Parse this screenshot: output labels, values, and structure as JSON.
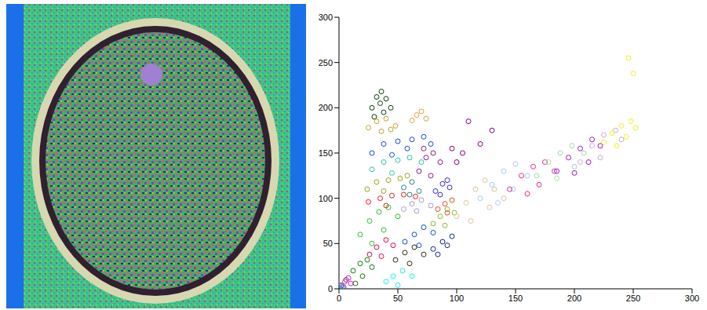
{
  "chart_data": {
    "type": "scatter",
    "xlim": [
      0,
      300
    ],
    "ylim": [
      0,
      300
    ],
    "xticks": [
      0,
      50,
      100,
      150,
      200,
      250,
      300
    ],
    "yticks": [
      0,
      50,
      100,
      150,
      200,
      250,
      300
    ],
    "grid": false,
    "marker": "circle",
    "series": [
      {
        "color": "#0a3a0a",
        "x": [
          28,
          32,
          36,
          40,
          44,
          30,
          38,
          35
        ],
        "y": [
          200,
          212,
          218,
          210,
          200,
          190,
          195,
          205
        ]
      },
      {
        "color": "#c8a030",
        "x": [
          25,
          32,
          40,
          48,
          36,
          44
        ],
        "y": [
          178,
          185,
          188,
          180,
          174,
          176
        ]
      },
      {
        "color": "#e0a040",
        "x": [
          62,
          66,
          70,
          74
        ],
        "y": [
          186,
          192,
          196,
          188
        ]
      },
      {
        "color": "#1848d8",
        "x": [
          28,
          38,
          50,
          62,
          72,
          45,
          58,
          78
        ],
        "y": [
          150,
          160,
          163,
          165,
          168,
          148,
          155,
          160
        ]
      },
      {
        "color": "#20c8a8",
        "x": [
          28,
          38,
          50,
          60,
          70,
          45
        ],
        "y": [
          132,
          140,
          142,
          145,
          140,
          128
        ]
      },
      {
        "color": "#8c1c8c",
        "x": [
          68,
          74,
          80,
          86,
          78,
          72
        ],
        "y": [
          130,
          145,
          150,
          140,
          125,
          155
        ]
      },
      {
        "color": "#a0a020",
        "x": [
          24,
          32,
          42,
          52,
          38,
          58
        ],
        "y": [
          110,
          118,
          120,
          122,
          108,
          125
        ]
      },
      {
        "color": "#208c90",
        "x": [
          55,
          62,
          68,
          60
        ],
        "y": [
          112,
          118,
          108,
          104
        ]
      },
      {
        "color": "#3c28d0",
        "x": [
          82,
          88,
          94,
          86,
          92
        ],
        "y": [
          108,
          116,
          112,
          104,
          120
        ]
      },
      {
        "color": "#f01818",
        "x": [
          25,
          35,
          45,
          55,
          65,
          40
        ],
        "y": [
          96,
          100,
          103,
          104,
          102,
          92
        ]
      },
      {
        "color": "#a898c8",
        "x": [
          55,
          62,
          70,
          78,
          66
        ],
        "y": [
          88,
          94,
          98,
          92,
          86
        ]
      },
      {
        "color": "#e05020",
        "x": [
          84,
          90,
          96,
          92
        ],
        "y": [
          88,
          94,
          98,
          84
        ]
      },
      {
        "color": "#30c030",
        "x": [
          18,
          26,
          34,
          42,
          50,
          28,
          38
        ],
        "y": [
          60,
          75,
          85,
          90,
          80,
          50,
          65
        ]
      },
      {
        "color": "#108010",
        "x": [
          6,
          12,
          18,
          24,
          28,
          14,
          20
        ],
        "y": [
          10,
          20,
          28,
          32,
          24,
          6,
          14
        ]
      },
      {
        "color": "#d01048",
        "x": [
          26,
          32,
          40,
          46,
          36
        ],
        "y": [
          38,
          46,
          54,
          48,
          36
        ]
      },
      {
        "color": "#1050d0",
        "x": [
          56,
          64,
          72,
          80,
          68
        ],
        "y": [
          52,
          60,
          68,
          62,
          48
        ]
      },
      {
        "color": "#303018",
        "x": [
          48,
          56,
          64,
          72,
          60
        ],
        "y": [
          32,
          40,
          46,
          38,
          28
        ]
      },
      {
        "color": "#142890",
        "x": [
          80,
          88,
          96,
          92,
          84
        ],
        "y": [
          44,
          52,
          58,
          48,
          38
        ]
      },
      {
        "color": "#18f0f0",
        "x": [
          40,
          46,
          54,
          62,
          50
        ],
        "y": [
          8,
          14,
          20,
          14,
          4
        ]
      },
      {
        "color": "#f010f0",
        "x": [
          2,
          5,
          8,
          10,
          4
        ],
        "y": [
          4,
          8,
          12,
          6,
          2
        ]
      },
      {
        "color": "#109898",
        "x": [
          1,
          2,
          3
        ],
        "y": [
          1,
          3,
          2
        ]
      },
      {
        "color": "#98b830",
        "x": [
          80,
          86,
          92,
          98,
          90
        ],
        "y": [
          72,
          80,
          88,
          84,
          70
        ]
      },
      {
        "color": "#d8c898",
        "x": [
          100,
          108,
          116,
          124,
          132,
          140,
          112,
          128
        ],
        "y": [
          80,
          95,
          110,
          120,
          110,
          100,
          75,
          90
        ]
      },
      {
        "color": "#a8ccf0",
        "x": [
          120,
          130,
          140,
          150,
          160,
          135,
          148
        ],
        "y": [
          100,
          115,
          130,
          138,
          125,
          95,
          110
        ]
      },
      {
        "color": "#e02890",
        "x": [
          145,
          155,
          165,
          175,
          183,
          160,
          170
        ],
        "y": [
          110,
          125,
          135,
          140,
          130,
          105,
          115
        ]
      },
      {
        "color": "#a8d8a8",
        "x": [
          168,
          178,
          188,
          198,
          208,
          185,
          200
        ],
        "y": [
          125,
          140,
          150,
          158,
          150,
          122,
          135
        ]
      },
      {
        "color": "#9818c0",
        "x": [
          185,
          195,
          205,
          215,
          222,
          200,
          212
        ],
        "y": [
          130,
          145,
          155,
          165,
          158,
          128,
          140
        ]
      },
      {
        "color": "#c8a8e0",
        "x": [
          205,
          215,
          225,
          235,
          240,
          222
        ],
        "y": [
          140,
          158,
          170,
          175,
          165,
          145
        ]
      },
      {
        "color": "#f0f020",
        "x": [
          225,
          232,
          240,
          248,
          252,
          236,
          244,
          246,
          250
        ],
        "y": [
          162,
          172,
          180,
          185,
          178,
          158,
          168,
          255,
          238
        ]
      },
      {
        "color": "#800080",
        "x": [
          100,
          105,
          110,
          96,
          120,
          130
        ],
        "y": [
          140,
          150,
          185,
          155,
          160,
          175
        ]
      }
    ]
  }
}
